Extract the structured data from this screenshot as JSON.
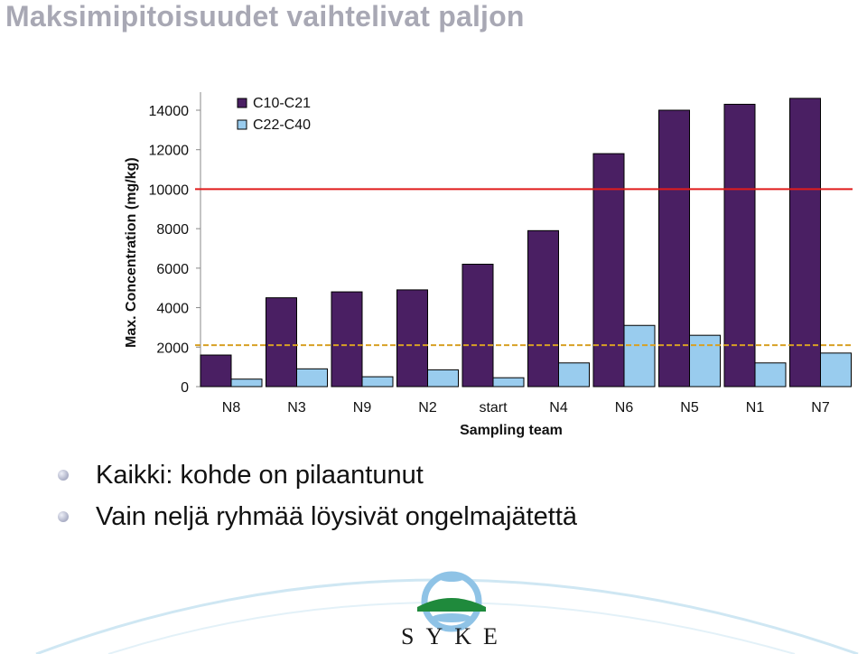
{
  "slide": {
    "title": "Maksimipitoisuudet vaihtelivat paljon",
    "bullets": [
      "Kaikki: kohde on pilaantunut",
      "Vain neljä ryhmää löysivät ongelmajätettä"
    ],
    "logo_text": "SYKE"
  },
  "chart_data": {
    "type": "bar",
    "title": "",
    "xlabel": "Sampling team",
    "ylabel": "Max. Concentration (mg/kg)",
    "ylim": [
      0,
      14000
    ],
    "yticks": [
      0,
      2000,
      4000,
      6000,
      8000,
      10000,
      12000,
      14000
    ],
    "categories": [
      "N8",
      "N3",
      "N9",
      "N2",
      "start",
      "N4",
      "N6",
      "N5",
      "N1",
      "N7"
    ],
    "series": [
      {
        "name": "C10-C21",
        "color": "#4a1f63",
        "values": [
          1600,
          4500,
          4800,
          4900,
          6200,
          7900,
          11800,
          14000,
          14300,
          14600
        ]
      },
      {
        "name": "C22-C40",
        "color": "#99ccee",
        "values": [
          380,
          900,
          500,
          850,
          450,
          1200,
          3100,
          2600,
          1200,
          1700
        ]
      }
    ],
    "reference_lines": [
      {
        "value": 10000,
        "color": "#e01c1c",
        "style": "solid"
      },
      {
        "value": 2100,
        "color": "#d7a024",
        "style": "dashed"
      }
    ],
    "legend_position": "top-left",
    "grid": false
  }
}
